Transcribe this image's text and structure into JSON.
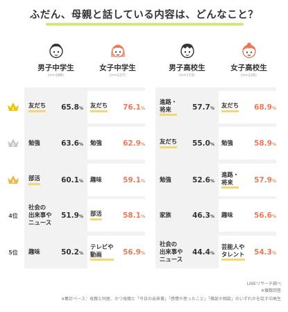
{
  "title": "ふだん、母親と話している内容は、どんなこと？",
  "groups": [
    {
      "name": "男子中学生",
      "n": "(n=188)",
      "color": "#333333"
    },
    {
      "name": "女子中学生",
      "n": "(n=227)",
      "color": "#ee7755"
    },
    {
      "name": "男子高校生",
      "n": "(n=173)",
      "color": "#333333"
    },
    {
      "name": "女子高校生",
      "n": "(n=226)",
      "color": "#ee7755"
    }
  ],
  "ranks": [
    "",
    "",
    "",
    "4位",
    "5位"
  ],
  "rank_icons": [
    "gold-crown-icon",
    "silver-crown-icon",
    "bronze-crown-icon"
  ],
  "chart_data": {
    "type": "table",
    "title": "ふだん、母親と話している内容は、どんなこと？",
    "unit": "%",
    "columns": [
      "男子中学生",
      "女子中学生",
      "男子高校生",
      "女子高校生"
    ],
    "rows": [
      [
        {
          "label": "友だち",
          "value": 65.8
        },
        {
          "label": "友だち",
          "value": 76.1
        },
        {
          "label": "進路・将来",
          "value": 57.7
        },
        {
          "label": "友だち",
          "value": 68.9
        }
      ],
      [
        {
          "label": "勉強",
          "value": 63.6
        },
        {
          "label": "勉強",
          "value": 62.9
        },
        {
          "label": "友だち",
          "value": 55.0
        },
        {
          "label": "勉強",
          "value": 58.9
        }
      ],
      [
        {
          "label": "部活",
          "value": 60.1
        },
        {
          "label": "趣味",
          "value": 59.1
        },
        {
          "label": "勉強",
          "value": 52.6
        },
        {
          "label": "進路・将来",
          "value": 57.9
        }
      ],
      [
        {
          "label": "社会の出来事やニュース",
          "value": 51.9
        },
        {
          "label": "部活",
          "value": 58.1
        },
        {
          "label": "家族",
          "value": 46.3
        },
        {
          "label": "趣味",
          "value": 56.6
        }
      ],
      [
        {
          "label": "趣味",
          "value": 50.2
        },
        {
          "label": "テレビや動画",
          "value": 56.9
        },
        {
          "label": "社会の出来事やニュース",
          "value": 44.4
        },
        {
          "label": "芸能人やタレント",
          "value": 54.3
        }
      ]
    ],
    "highlight_labels": [
      "友だち",
      "進路・将来",
      "部活",
      "テレビや動画",
      "芸能人やタレント"
    ]
  },
  "footer": {
    "source": "LINEリサーチ調べ",
    "note1": "※複数回答",
    "note2": "※集計ベース：母親と同居、かつ母親と「今日の出来事」「感情や思ったこと」「雑談や相談」のいずれかを話す中高生"
  }
}
